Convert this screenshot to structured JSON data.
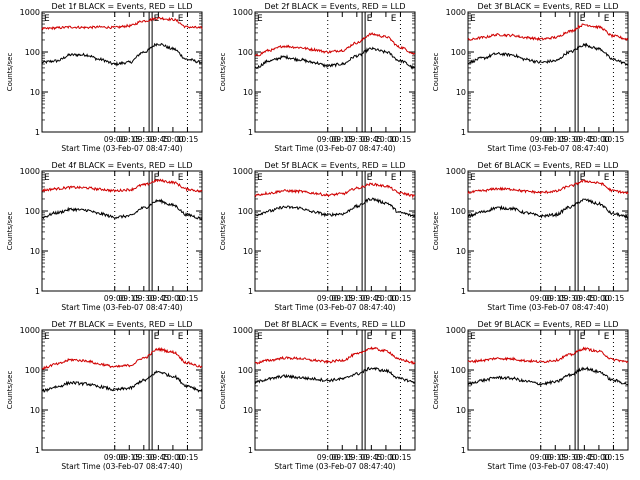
{
  "chart_data": [
    {
      "type": "line",
      "title": "Det 1f BLACK = Events, RED = LLD",
      "xlabel": "Start Time (03-Feb-07 08:47:40)",
      "ylabel": "Counts/sec",
      "y_scale": "log",
      "ylim": [
        1,
        1000
      ],
      "yticks": [
        "1",
        "10",
        "100",
        "1000"
      ],
      "xlim": [
        "07:45",
        "10:30"
      ],
      "xticks": [
        "09:00",
        "09:15",
        "09:30",
        "09:45",
        "10:00",
        "10:15"
      ],
      "legend_marker_text": "E",
      "series": [
        {
          "name": "BLACK = Events",
          "color": "#000000",
          "x": [
            "07:45",
            "08:00",
            "08:15",
            "08:30",
            "08:45",
            "09:00",
            "09:15",
            "09:30",
            "09:45",
            "10:00",
            "10:15",
            "10:30"
          ],
          "values": [
            55,
            60,
            85,
            85,
            65,
            50,
            55,
            100,
            160,
            120,
            65,
            55
          ]
        },
        {
          "name": "RED = LLD",
          "color": "#d00000",
          "x": [
            "07:45",
            "08:00",
            "08:15",
            "08:30",
            "08:45",
            "09:00",
            "09:15",
            "09:30",
            "09:45",
            "10:00",
            "10:15",
            "10:30"
          ],
          "values": [
            380,
            400,
            420,
            410,
            420,
            410,
            450,
            600,
            700,
            650,
            420,
            400
          ]
        }
      ]
    },
    {
      "type": "line",
      "title": "Det 2f BLACK = Events, RED = LLD",
      "xlabel": "Start Time (03-Feb-07 08:47:40)",
      "ylabel": "Counts/sec",
      "y_scale": "log",
      "ylim": [
        1,
        1000
      ],
      "yticks": [
        "1",
        "10",
        "100",
        "1000"
      ],
      "xlim": [
        "07:45",
        "10:30"
      ],
      "xticks": [
        "09:00",
        "09:15",
        "09:30",
        "09:45",
        "10:00",
        "10:15"
      ],
      "legend_marker_text": "E",
      "series": [
        {
          "name": "BLACK = Events",
          "color": "#000000",
          "x": [
            "07:45",
            "08:00",
            "08:15",
            "08:30",
            "08:45",
            "09:00",
            "09:15",
            "09:30",
            "09:45",
            "10:00",
            "10:15",
            "10:30"
          ],
          "values": [
            40,
            60,
            75,
            65,
            55,
            45,
            50,
            80,
            120,
            100,
            60,
            40
          ]
        },
        {
          "name": "RED = LLD",
          "color": "#d00000",
          "x": [
            "07:45",
            "08:00",
            "08:15",
            "08:30",
            "08:45",
            "09:00",
            "09:15",
            "09:30",
            "09:45",
            "10:00",
            "10:15",
            "10:30"
          ],
          "values": [
            80,
            110,
            140,
            130,
            115,
            100,
            110,
            170,
            280,
            240,
            130,
            90
          ]
        }
      ]
    },
    {
      "type": "line",
      "title": "Det 3f BLACK = Events, RED = LLD",
      "xlabel": "Start Time (03-Feb-07 08:47:40)",
      "ylabel": "Counts/sec",
      "y_scale": "log",
      "ylim": [
        1,
        1000
      ],
      "yticks": [
        "1",
        "10",
        "100",
        "1000"
      ],
      "xlim": [
        "07:45",
        "10:30"
      ],
      "xticks": [
        "09:00",
        "09:15",
        "09:30",
        "09:45",
        "10:00",
        "10:15"
      ],
      "legend_marker_text": "E",
      "series": [
        {
          "name": "BLACK = Events",
          "color": "#000000",
          "x": [
            "07:45",
            "08:00",
            "08:15",
            "08:30",
            "08:45",
            "09:00",
            "09:15",
            "09:30",
            "09:45",
            "10:00",
            "10:15",
            "10:30"
          ],
          "values": [
            55,
            70,
            90,
            85,
            65,
            55,
            60,
            100,
            150,
            120,
            65,
            50
          ]
        },
        {
          "name": "RED = LLD",
          "color": "#d00000",
          "x": [
            "07:45",
            "08:00",
            "08:15",
            "08:30",
            "08:45",
            "09:00",
            "09:15",
            "09:30",
            "09:45",
            "10:00",
            "10:15",
            "10:30"
          ],
          "values": [
            200,
            230,
            270,
            260,
            230,
            210,
            230,
            330,
            480,
            420,
            250,
            210
          ]
        }
      ]
    },
    {
      "type": "line",
      "title": "Det 4f BLACK = Events, RED = LLD",
      "xlabel": "Start Time (03-Feb-07 08:47:40)",
      "ylabel": "Counts/sec",
      "y_scale": "log",
      "ylim": [
        1,
        1000
      ],
      "yticks": [
        "1",
        "10",
        "100",
        "1000"
      ],
      "xlim": [
        "07:45",
        "10:30"
      ],
      "xticks": [
        "09:00",
        "09:15",
        "09:30",
        "09:45",
        "10:00",
        "10:15"
      ],
      "legend_marker_text": "E",
      "series": [
        {
          "name": "BLACK = Events",
          "color": "#000000",
          "x": [
            "07:45",
            "08:00",
            "08:15",
            "08:30",
            "08:45",
            "09:00",
            "09:15",
            "09:30",
            "09:45",
            "10:00",
            "10:15",
            "10:30"
          ],
          "values": [
            70,
            90,
            110,
            105,
            85,
            70,
            75,
            120,
            180,
            140,
            80,
            65
          ]
        },
        {
          "name": "RED = LLD",
          "color": "#d00000",
          "x": [
            "07:45",
            "08:00",
            "08:15",
            "08:30",
            "08:45",
            "09:00",
            "09:15",
            "09:30",
            "09:45",
            "10:00",
            "10:15",
            "10:30"
          ],
          "values": [
            330,
            360,
            390,
            380,
            350,
            320,
            340,
            450,
            580,
            520,
            350,
            310
          ]
        }
      ]
    },
    {
      "type": "line",
      "title": "Det 5f BLACK = Events, RED = LLD",
      "xlabel": "Start Time (03-Feb-07 08:47:40)",
      "ylabel": "Counts/sec",
      "y_scale": "log",
      "ylim": [
        1,
        1000
      ],
      "yticks": [
        "1",
        "10",
        "100",
        "1000"
      ],
      "xlim": [
        "07:45",
        "10:30"
      ],
      "xticks": [
        "09:00",
        "09:15",
        "09:30",
        "09:45",
        "10:00",
        "10:15"
      ],
      "legend_marker_text": "E",
      "series": [
        {
          "name": "BLACK = Events",
          "color": "#000000",
          "x": [
            "07:45",
            "08:00",
            "08:15",
            "08:30",
            "08:45",
            "09:00",
            "09:15",
            "09:30",
            "09:45",
            "10:00",
            "10:15",
            "10:30"
          ],
          "values": [
            80,
            100,
            125,
            120,
            95,
            80,
            85,
            130,
            200,
            160,
            90,
            75
          ]
        },
        {
          "name": "RED = LLD",
          "color": "#d00000",
          "x": [
            "07:45",
            "08:00",
            "08:15",
            "08:30",
            "08:45",
            "09:00",
            "09:15",
            "09:30",
            "09:45",
            "10:00",
            "10:15",
            "10:30"
          ],
          "values": [
            250,
            280,
            320,
            310,
            280,
            250,
            270,
            370,
            470,
            420,
            280,
            240
          ]
        }
      ]
    },
    {
      "type": "line",
      "title": "Det 6f BLACK = Events, RED = LLD",
      "xlabel": "Start Time (03-Feb-07 08:47:40)",
      "ylabel": "Counts/sec",
      "y_scale": "log",
      "ylim": [
        1,
        1000
      ],
      "yticks": [
        "1",
        "10",
        "100",
        "1000"
      ],
      "xlim": [
        "07:45",
        "10:30"
      ],
      "xticks": [
        "09:00",
        "09:15",
        "09:30",
        "09:45",
        "10:00",
        "10:15"
      ],
      "legend_marker_text": "E",
      "series": [
        {
          "name": "BLACK = Events",
          "color": "#000000",
          "x": [
            "07:45",
            "08:00",
            "08:15",
            "08:30",
            "08:45",
            "09:00",
            "09:15",
            "09:30",
            "09:45",
            "10:00",
            "10:15",
            "10:30"
          ],
          "values": [
            75,
            95,
            120,
            115,
            90,
            75,
            80,
            125,
            190,
            150,
            85,
            70
          ]
        },
        {
          "name": "RED = LLD",
          "color": "#d00000",
          "x": [
            "07:45",
            "08:00",
            "08:15",
            "08:30",
            "08:45",
            "09:00",
            "09:15",
            "09:30",
            "09:45",
            "10:00",
            "10:15",
            "10:30"
          ],
          "values": [
            290,
            320,
            360,
            350,
            310,
            290,
            310,
            420,
            560,
            500,
            320,
            280
          ]
        }
      ]
    },
    {
      "type": "line",
      "title": "Det 7f BLACK = Events, RED = LLD",
      "xlabel": "Start Time (03-Feb-07 08:47:40)",
      "ylabel": "Counts/sec",
      "y_scale": "log",
      "ylim": [
        1,
        1000
      ],
      "yticks": [
        "1",
        "10",
        "100",
        "1000"
      ],
      "xlim": [
        "07:45",
        "10:30"
      ],
      "xticks": [
        "09:00",
        "09:15",
        "09:30",
        "09:45",
        "10:00",
        "10:15"
      ],
      "legend_marker_text": "E",
      "series": [
        {
          "name": "BLACK = Events",
          "color": "#000000",
          "x": [
            "07:45",
            "08:00",
            "08:15",
            "08:30",
            "08:45",
            "09:00",
            "09:15",
            "09:30",
            "09:45",
            "10:00",
            "10:15",
            "10:30"
          ],
          "values": [
            30,
            38,
            48,
            45,
            38,
            32,
            35,
            55,
            90,
            70,
            40,
            30
          ]
        },
        {
          "name": "RED = LLD",
          "color": "#d00000",
          "x": [
            "07:45",
            "08:00",
            "08:15",
            "08:30",
            "08:45",
            "09:00",
            "09:15",
            "09:30",
            "09:45",
            "10:00",
            "10:15",
            "10:30"
          ],
          "values": [
            110,
            140,
            180,
            170,
            140,
            120,
            130,
            200,
            330,
            280,
            150,
            120
          ]
        }
      ]
    },
    {
      "type": "line",
      "title": "Det 8f BLACK = Events, RED = LLD",
      "xlabel": "Start Time (03-Feb-07 08:47:40)",
      "ylabel": "Counts/sec",
      "y_scale": "log",
      "ylim": [
        1,
        1000
      ],
      "yticks": [
        "1",
        "10",
        "100",
        "1000"
      ],
      "xlim": [
        "07:45",
        "10:30"
      ],
      "xticks": [
        "09:00",
        "09:15",
        "09:30",
        "09:45",
        "10:00",
        "10:15"
      ],
      "legend_marker_text": "E",
      "series": [
        {
          "name": "BLACK = Events",
          "color": "#000000",
          "x": [
            "07:45",
            "08:00",
            "08:15",
            "08:30",
            "08:45",
            "09:00",
            "09:15",
            "09:30",
            "09:45",
            "10:00",
            "10:15",
            "10:30"
          ],
          "values": [
            50,
            60,
            70,
            65,
            60,
            55,
            60,
            80,
            110,
            95,
            60,
            50
          ]
        },
        {
          "name": "RED = LLD",
          "color": "#d00000",
          "x": [
            "07:45",
            "08:00",
            "08:15",
            "08:30",
            "08:45",
            "09:00",
            "09:15",
            "09:30",
            "09:45",
            "10:00",
            "10:15",
            "10:30"
          ],
          "values": [
            150,
            175,
            200,
            195,
            175,
            160,
            175,
            250,
            350,
            300,
            180,
            150
          ]
        }
      ]
    },
    {
      "type": "line",
      "title": "Det 9f BLACK = Events, RED = LLD",
      "xlabel": "Start Time (03-Feb-07 08:47:40)",
      "ylabel": "Counts/sec",
      "y_scale": "log",
      "ylim": [
        1,
        1000
      ],
      "yticks": [
        "1",
        "10",
        "100",
        "1000"
      ],
      "xlim": [
        "07:45",
        "10:30"
      ],
      "xticks": [
        "09:00",
        "09:15",
        "09:30",
        "09:45",
        "10:00",
        "10:15"
      ],
      "legend_marker_text": "E",
      "series": [
        {
          "name": "BLACK = Events",
          "color": "#000000",
          "x": [
            "07:45",
            "08:00",
            "08:15",
            "08:30",
            "08:45",
            "09:00",
            "09:15",
            "09:30",
            "09:45",
            "10:00",
            "10:15",
            "10:30"
          ],
          "values": [
            45,
            55,
            65,
            62,
            52,
            45,
            50,
            75,
            110,
            90,
            55,
            45
          ]
        },
        {
          "name": "RED = LLD",
          "color": "#d00000",
          "x": [
            "07:45",
            "08:00",
            "08:15",
            "08:30",
            "08:45",
            "09:00",
            "09:15",
            "09:30",
            "09:45",
            "10:00",
            "10:15",
            "10:30"
          ],
          "values": [
            160,
            175,
            195,
            190,
            170,
            160,
            175,
            240,
            340,
            290,
            180,
            160
          ]
        }
      ]
    }
  ]
}
